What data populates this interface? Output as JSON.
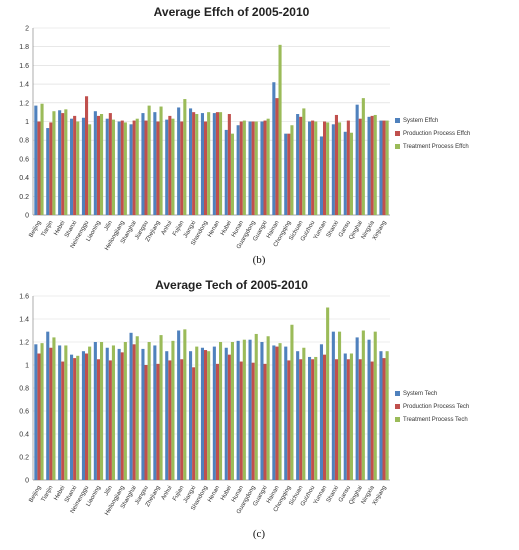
{
  "chart_data": [
    {
      "type": "bar",
      "title": "Average Effch of 2005-2010",
      "panel_label": "(b)",
      "ylim": [
        0,
        2
      ],
      "yticks": [
        "0",
        "0.2",
        "0.4",
        "0.6",
        "0.8",
        "1",
        "1.2",
        "1.4",
        "1.6",
        "1.8",
        "2"
      ],
      "ytick_values": [
        0,
        0.2,
        0.4,
        0.6,
        0.8,
        1,
        1.2,
        1.4,
        1.6,
        1.8,
        2
      ],
      "grid": true,
      "legend_position": "right",
      "categories": [
        "Beijing",
        "Tianjin",
        "Hebei",
        "Shanxi",
        "Neimenggu",
        "Liaoning",
        "Jilin",
        "Heilongjiang",
        "Shanghai",
        "Jiangsu",
        "Zhejiang",
        "Anhui",
        "Fujian",
        "Jiangxi",
        "Shandong",
        "Henan",
        "Hubei",
        "Hunan",
        "Guangdong",
        "Guangxi",
        "Hainan",
        "Chongqing",
        "Sichuan",
        "Guizhou",
        "Yunnan",
        "Shanxi",
        "Gansu",
        "Qinghai",
        "Ningxia",
        "Xinjiang"
      ],
      "series": [
        {
          "name": "System Effch",
          "color": "#4f81bd",
          "values": [
            1.17,
            0.93,
            1.12,
            1.03,
            1.04,
            1.11,
            1.03,
            1.0,
            0.97,
            1.09,
            1.1,
            1.02,
            1.15,
            1.14,
            1.09,
            1.09,
            0.91,
            0.96,
            1.0,
            1.0,
            1.42,
            0.87,
            1.08,
            1.0,
            0.84,
            0.97,
            0.89,
            1.18,
            1.05,
            1.01
          ]
        },
        {
          "name": "Production Process Effch",
          "color": "#c0504d",
          "values": [
            1.0,
            0.99,
            1.09,
            1.06,
            1.27,
            1.06,
            1.09,
            1.01,
            1.01,
            1.01,
            1.0,
            1.06,
            1.0,
            1.1,
            1.0,
            1.1,
            1.08,
            1.0,
            1.0,
            1.01,
            1.25,
            0.87,
            1.05,
            1.01,
            1.0,
            1.07,
            1.01,
            1.03,
            1.06,
            1.01
          ]
        },
        {
          "name": "Treatment Process Effch",
          "color": "#9bbb59",
          "values": [
            1.19,
            1.11,
            1.13,
            1.0,
            0.97,
            1.08,
            1.02,
            0.99,
            1.03,
            1.17,
            1.16,
            1.03,
            1.24,
            1.08,
            1.1,
            1.1,
            0.87,
            1.01,
            1.0,
            1.03,
            1.82,
            0.96,
            1.14,
            1.0,
            0.99,
            0.99,
            0.88,
            1.25,
            1.07,
            1.01
          ]
        }
      ]
    },
    {
      "type": "bar",
      "title": "Average Tech of 2005-2010",
      "panel_label": "(c)",
      "ylim": [
        0,
        1.6
      ],
      "yticks": [
        "0",
        "0.2",
        "0.4",
        "0.6",
        "0.8",
        "1",
        "1.2",
        "1.4",
        "1.6"
      ],
      "ytick_values": [
        0,
        0.2,
        0.4,
        0.6,
        0.8,
        1,
        1.2,
        1.4,
        1.6
      ],
      "grid": true,
      "legend_position": "right",
      "categories": [
        "Beijing",
        "Tianjin",
        "Hebei",
        "Shanxi",
        "Neimenggu",
        "Liaoning",
        "Jilin",
        "Heilongjiang",
        "Shanghai",
        "Jiangsu",
        "Zhejiang",
        "Anhui",
        "Fujian",
        "Jiangxi",
        "Shandong",
        "Henan",
        "Hubei",
        "Hunan",
        "Guangdong",
        "Guangxi",
        "Hainan",
        "Chongqing",
        "Sichuan",
        "Guizhou",
        "Yunnan",
        "Shanxi",
        "Gansu",
        "Qinghai",
        "Ningxia",
        "Xinjiang"
      ],
      "series": [
        {
          "name": "System Tech",
          "color": "#4f81bd",
          "values": [
            1.18,
            1.29,
            1.17,
            1.09,
            1.12,
            1.2,
            1.15,
            1.14,
            1.28,
            1.14,
            1.17,
            1.12,
            1.3,
            1.12,
            1.15,
            1.16,
            1.15,
            1.21,
            1.22,
            1.2,
            1.17,
            1.16,
            1.12,
            1.07,
            1.18,
            1.29,
            1.1,
            1.24,
            1.22,
            1.12
          ]
        },
        {
          "name": "Production Process Tech",
          "color": "#c0504d",
          "values": [
            1.1,
            1.15,
            1.03,
            1.06,
            1.1,
            1.05,
            1.04,
            1.11,
            1.18,
            1.0,
            1.01,
            1.04,
            1.05,
            0.98,
            1.13,
            1.01,
            1.09,
            1.03,
            1.02,
            1.01,
            1.16,
            1.04,
            1.05,
            1.05,
            1.09,
            1.05,
            1.05,
            1.05,
            1.03,
            1.06
          ]
        },
        {
          "name": "Treatment Process Tech",
          "color": "#9bbb59",
          "values": [
            1.19,
            1.24,
            1.17,
            1.08,
            1.16,
            1.2,
            1.17,
            1.2,
            1.25,
            1.2,
            1.26,
            1.21,
            1.31,
            1.16,
            1.12,
            1.2,
            1.2,
            1.22,
            1.27,
            1.25,
            1.19,
            1.35,
            1.15,
            1.07,
            1.5,
            1.29,
            1.1,
            1.3,
            1.29,
            1.12
          ]
        }
      ]
    }
  ]
}
